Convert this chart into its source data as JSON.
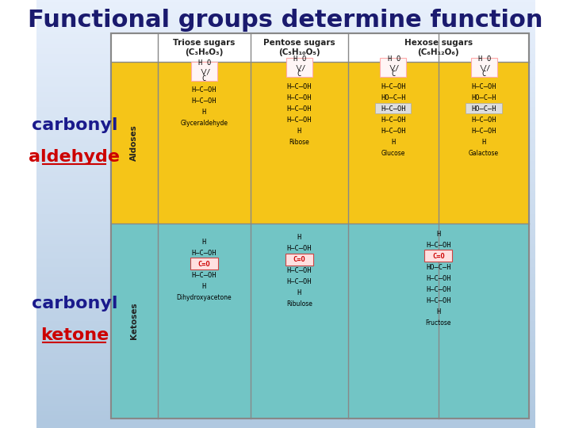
{
  "title": "Functional groups determine function",
  "title_color": "#1a1a6e",
  "title_fontsize": 22,
  "carbonyl_color": "#1a1a8c",
  "aldehyde_color": "#cc0000",
  "ketone_color": "#cc0000",
  "aldose_bg": "#f5c518",
  "ketose_bg": "#72c5c5",
  "aldose_label": "Aldoses",
  "ketose_label": "Ketoses",
  "col1_aldose_name": "Glyceraldehyde",
  "col2_aldose_name": "Ribose",
  "col3a_aldose_name": "Glucose",
  "col3b_aldose_name": "Galactose",
  "col1_ketose_name": "Dihydroxyacetone",
  "col2_ketose_name": "Ribulose",
  "col3_ketose_name": "Fructose",
  "header_col1": "Triose sugars\n(C₃H₆O₃)",
  "header_col2": "Pentose sugars\n(C₅H₁₀O₅)",
  "header_col3": "Hexose sugars\n(C₆H₁₂O₆)"
}
